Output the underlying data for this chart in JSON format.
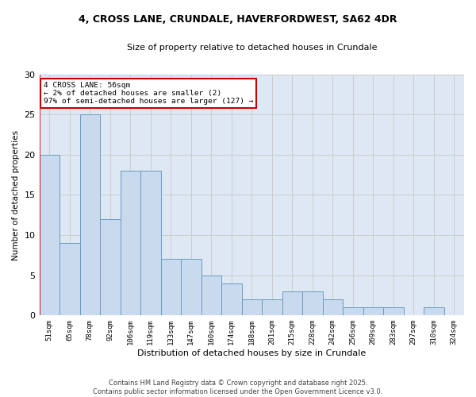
{
  "title1": "4, CROSS LANE, CRUNDALE, HAVERFORDWEST, SA62 4DR",
  "title2": "Size of property relative to detached houses in Crundale",
  "xlabel": "Distribution of detached houses by size in Crundale",
  "ylabel": "Number of detached properties",
  "categories": [
    "51sqm",
    "65sqm",
    "78sqm",
    "92sqm",
    "106sqm",
    "119sqm",
    "133sqm",
    "147sqm",
    "160sqm",
    "174sqm",
    "188sqm",
    "201sqm",
    "215sqm",
    "228sqm",
    "242sqm",
    "256sqm",
    "269sqm",
    "283sqm",
    "297sqm",
    "310sqm",
    "324sqm"
  ],
  "values": [
    20,
    9,
    25,
    12,
    18,
    18,
    7,
    7,
    5,
    4,
    2,
    2,
    3,
    3,
    2,
    1,
    1,
    1,
    0,
    1,
    0
  ],
  "bar_color": "#c9d9ee",
  "bar_edge_color": "#6a9cc0",
  "vline_color": "#cc0000",
  "annotation_text": "4 CROSS LANE: 56sqm\n← 2% of detached houses are smaller (2)\n97% of semi-detached houses are larger (127) →",
  "annotation_box_color": "white",
  "annotation_box_edge": "#cc0000",
  "grid_color": "#cccccc",
  "background_color": "#dde8f4",
  "footer": "Contains HM Land Registry data © Crown copyright and database right 2025.\nContains public sector information licensed under the Open Government Licence v3.0.",
  "ylim": [
    0,
    30
  ],
  "yticks": [
    0,
    5,
    10,
    15,
    20,
    25,
    30
  ]
}
